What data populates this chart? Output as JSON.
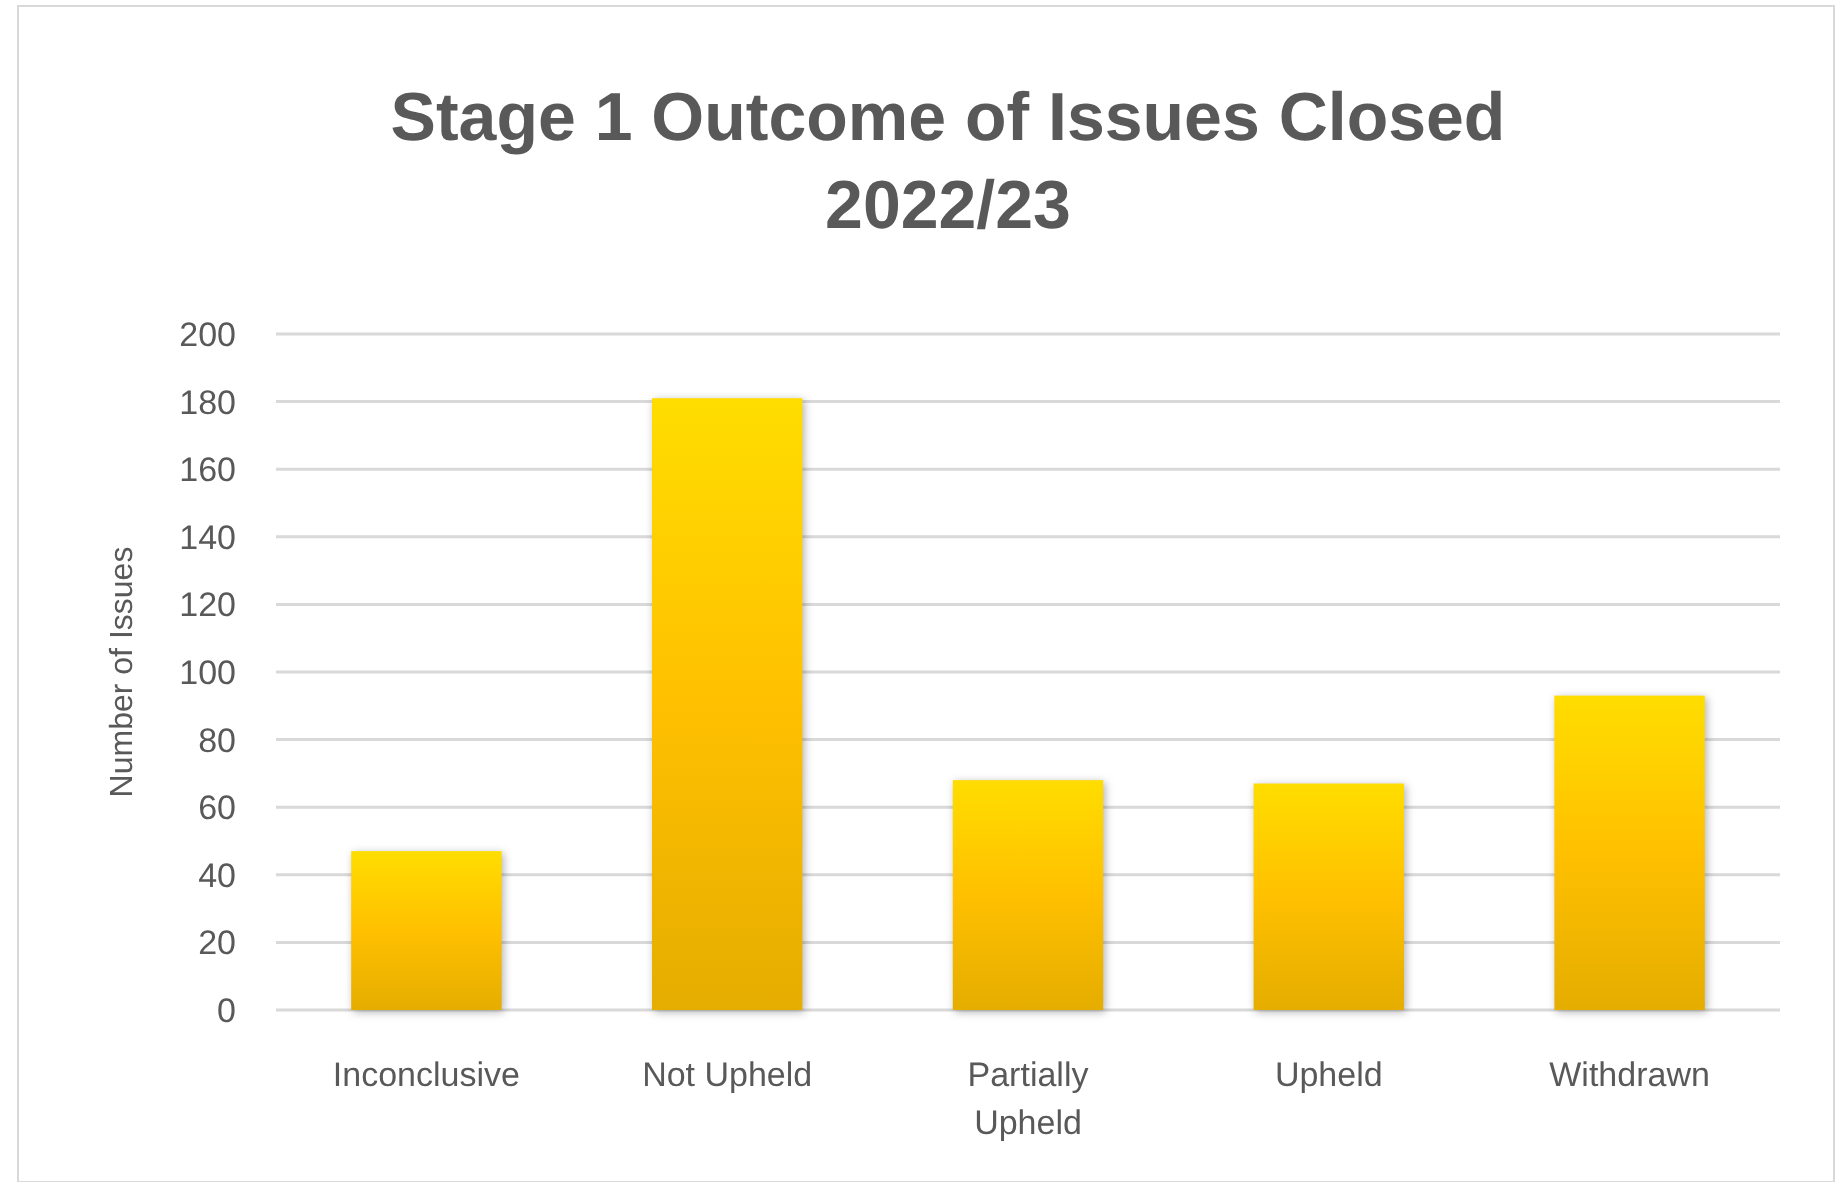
{
  "chart_data": {
    "type": "bar",
    "title": "Stage 1 Outcome of Issues Closed 2022/23",
    "ylabel": "Number of Issues",
    "categories": [
      "Inconclusive",
      "Not Upheld",
      "Partially Upheld",
      "Upheld",
      "Withdrawn"
    ],
    "values": [
      47,
      181,
      68,
      67,
      93
    ],
    "color": "#ffc000",
    "ylim": [
      0,
      200
    ],
    "yticks": [
      0,
      20,
      40,
      60,
      80,
      100,
      120,
      140,
      160,
      180,
      200
    ],
    "grid": "y"
  }
}
